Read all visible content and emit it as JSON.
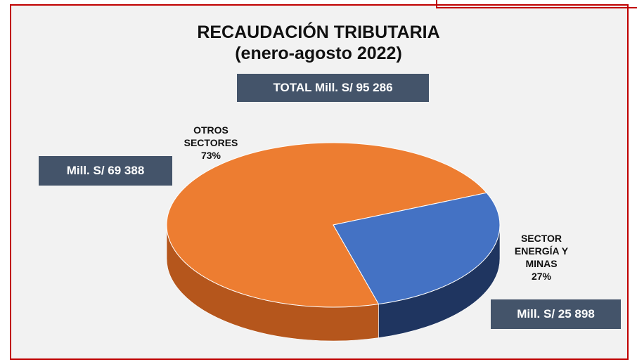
{
  "chart_data": {
    "type": "pie3d",
    "title": "RECAUDACIÓN TRIBUTARIA",
    "subtitle": "(enero-agosto 2022)",
    "total": "TOTAL Mill. S/ 95 286",
    "categories": [
      "OTROS SECTORES",
      "SECTOR ENERGÍA Y MINAS"
    ],
    "values": [
      73,
      27
    ],
    "value_labels": [
      "73%",
      "27%"
    ],
    "amounts": [
      "Mill. S/ 69 388",
      "Mill. S/ 25 898"
    ],
    "colors": [
      "#ed7d31",
      "#4472c4"
    ],
    "side_colors": [
      "#b5561c",
      "#1f3560"
    ]
  }
}
